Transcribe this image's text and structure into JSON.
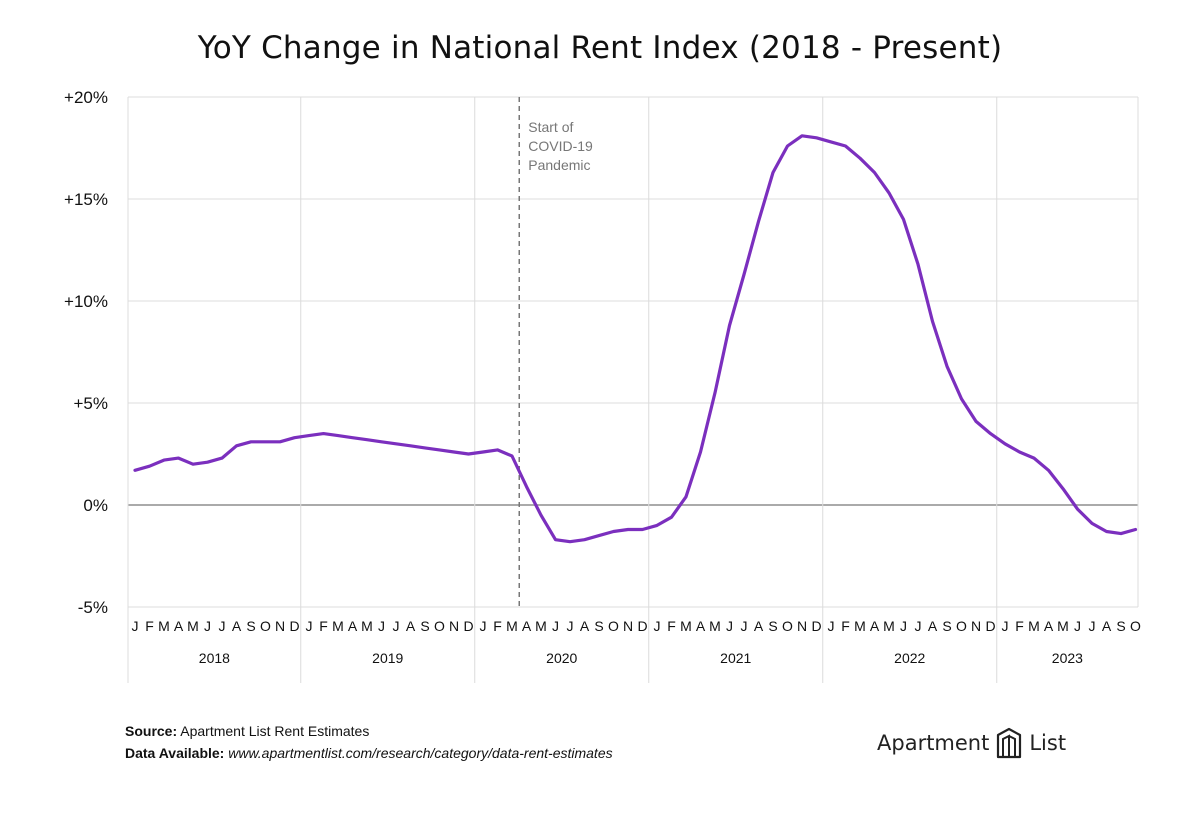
{
  "title": "YoY Change in National Rent Index (2018 - Present)",
  "footer": {
    "source_label": "Source:",
    "source_text": "Apartment List Rent Estimates",
    "data_label": "Data Available:",
    "data_url": "www.apartmentlist.com/research/category/data-rent-estimates"
  },
  "brand": {
    "left": "Apartment",
    "right": "List",
    "icon": "apartment-list-logo-icon"
  },
  "colors": {
    "line": "#7B2FBE",
    "grid": "#dcdcdc",
    "zero": "#aaaaaa",
    "annotation_line": "#777777"
  },
  "chart_data": {
    "type": "line",
    "title": "YoY Change in National Rent Index (2018 - Present)",
    "xlabel": "",
    "ylabel": "",
    "ylim": [
      -5,
      20
    ],
    "y_ticks": [
      20,
      15,
      10,
      5,
      0,
      -5
    ],
    "y_tick_labels": [
      "+20%",
      "+15%",
      "+10%",
      "+5%",
      "0%",
      "-5%"
    ],
    "grid": true,
    "legend": "none",
    "month_letters": [
      "J",
      "F",
      "M",
      "A",
      "M",
      "J",
      "J",
      "A",
      "S",
      "O",
      "N",
      "D"
    ],
    "years": [
      "2018",
      "2019",
      "2020",
      "2021",
      "2022",
      "2023"
    ],
    "annotation": {
      "label_lines": [
        "Start of",
        "COVID-19",
        "Pandemic"
      ],
      "month_index": 26.5
    },
    "series": [
      {
        "values": [
          1.7,
          1.9,
          2.2,
          2.3,
          2.0,
          2.1,
          2.3,
          2.9,
          3.1,
          3.1,
          3.1,
          3.3,
          3.4,
          3.5,
          3.4,
          3.3,
          3.2,
          3.1,
          3.0,
          2.9,
          2.8,
          2.7,
          2.6,
          2.5,
          2.6,
          2.7,
          2.4,
          0.9,
          -0.5,
          -1.7,
          -1.8,
          -1.7,
          -1.5,
          -1.3,
          -1.2,
          -1.2,
          -1.0,
          -0.6,
          0.4,
          2.6,
          5.5,
          8.8,
          11.3,
          13.9,
          16.3,
          17.6,
          18.1,
          18.0,
          17.8,
          17.6,
          17.0,
          16.3,
          15.3,
          14.0,
          11.8,
          9.0,
          6.8,
          5.2,
          4.1,
          3.5,
          3.0,
          2.6,
          2.3,
          1.7,
          0.8,
          -0.2,
          -0.9,
          -1.3,
          -1.4,
          -1.2
        ]
      }
    ]
  }
}
